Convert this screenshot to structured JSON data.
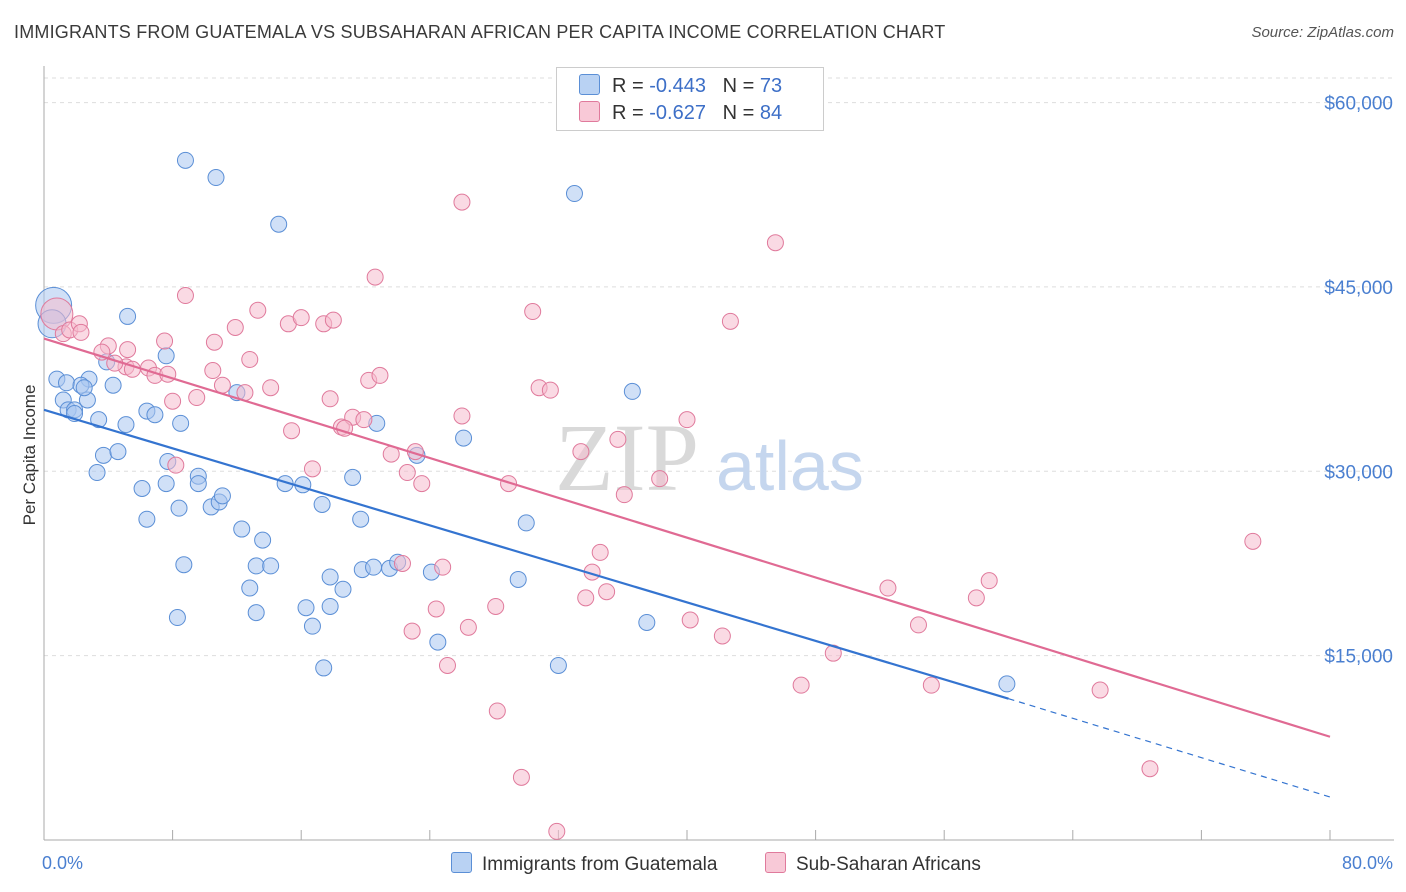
{
  "title": "IMMIGRANTS FROM GUATEMALA VS SUBSAHARAN AFRICAN PER CAPITA INCOME CORRELATION CHART",
  "source": "Source: ZipAtlas.com",
  "watermark": {
    "zip": "ZIP",
    "atlas": "atlas"
  },
  "legend": {
    "r_label": "R =",
    "n_label": "N =",
    "series": [
      {
        "r": "-0.443",
        "n": "73",
        "color": "#a9c7f0",
        "edge": "#5b8fd6"
      },
      {
        "r": "-0.627",
        "n": "84",
        "color": "#f6bccd",
        "edge": "#e07a9c"
      }
    ]
  },
  "bottom_legend": [
    "Immigrants from Guatemala",
    "Sub-Saharan Africans"
  ],
  "chart_data": {
    "type": "scatter",
    "ylabel": "Per Capita Income",
    "xlim": [
      0,
      80
    ],
    "ylim": [
      0,
      62000
    ],
    "grid": true,
    "y_ticks": [
      {
        "value": 60000,
        "label": "$60,000"
      },
      {
        "value": 45000,
        "label": "$45,000"
      },
      {
        "value": 30000,
        "label": "$30,000"
      },
      {
        "value": 15000,
        "label": "$15,000"
      }
    ],
    "x_tick_labels": [
      {
        "value": 0,
        "label": "0.0%"
      },
      {
        "value": 80,
        "label": "80.0%"
      }
    ],
    "series": [
      {
        "name": "Immigrants from Guatemala",
        "color": "#a9c7f0",
        "edge": "#5b8fd6",
        "line_color": "#3474d0",
        "trend": {
          "x0": 0,
          "y0": 35000,
          "x1": 60,
          "y1": 11500,
          "dash_to_x": 80,
          "dash_to_y": 3500
        },
        "points": [
          [
            0.6,
            43500
          ],
          [
            0.5,
            42000
          ],
          [
            0.8,
            37500
          ],
          [
            1.4,
            37200
          ],
          [
            1.2,
            35800
          ],
          [
            1.5,
            35000
          ],
          [
            1.9,
            35000
          ],
          [
            2.8,
            37500
          ],
          [
            2.3,
            37000
          ],
          [
            2.7,
            35800
          ],
          [
            3.9,
            38900
          ],
          [
            4.3,
            37000
          ],
          [
            5.2,
            42600
          ],
          [
            3.4,
            34200
          ],
          [
            3.3,
            29900
          ],
          [
            3.7,
            31300
          ],
          [
            4.6,
            31600
          ],
          [
            5.1,
            33800
          ],
          [
            6.4,
            34900
          ],
          [
            6.9,
            34600
          ],
          [
            7.6,
            39400
          ],
          [
            8.5,
            33900
          ],
          [
            6.1,
            28600
          ],
          [
            7.6,
            29000
          ],
          [
            7.7,
            30800
          ],
          [
            8.4,
            27000
          ],
          [
            9.6,
            29600
          ],
          [
            10.4,
            27100
          ],
          [
            10.9,
            27500
          ],
          [
            11.1,
            28000
          ],
          [
            9.6,
            29000
          ],
          [
            6.4,
            26100
          ],
          [
            12.3,
            25300
          ],
          [
            12.0,
            36400
          ],
          [
            13.2,
            22300
          ],
          [
            13.6,
            24400
          ],
          [
            14.1,
            22300
          ],
          [
            12.8,
            20500
          ],
          [
            13.2,
            18500
          ],
          [
            15.0,
            29000
          ],
          [
            16.1,
            28900
          ],
          [
            16.3,
            18900
          ],
          [
            17.3,
            27300
          ],
          [
            17.8,
            19000
          ],
          [
            17.8,
            21400
          ],
          [
            18.6,
            20400
          ],
          [
            16.7,
            17400
          ],
          [
            8.7,
            22400
          ],
          [
            8.3,
            18100
          ],
          [
            19.2,
            29500
          ],
          [
            19.7,
            26100
          ],
          [
            19.8,
            22000
          ],
          [
            20.5,
            22200
          ],
          [
            20.7,
            33900
          ],
          [
            21.5,
            22100
          ],
          [
            22.0,
            22600
          ],
          [
            23.2,
            31300
          ],
          [
            24.1,
            21800
          ],
          [
            24.5,
            16100
          ],
          [
            26.1,
            32700
          ],
          [
            29.5,
            21200
          ],
          [
            30.0,
            25800
          ],
          [
            32.0,
            14200
          ],
          [
            33.0,
            52600
          ],
          [
            36.6,
            36500
          ],
          [
            37.5,
            17700
          ],
          [
            17.4,
            14000
          ],
          [
            14.6,
            50100
          ],
          [
            8.8,
            55300
          ],
          [
            10.7,
            53900
          ],
          [
            59.9,
            12700
          ],
          [
            2.5,
            36800
          ],
          [
            1.9,
            34700
          ]
        ],
        "sizes": {
          "0": 18,
          "1": 14
        }
      },
      {
        "name": "Sub-Saharan Africans",
        "color": "#f6bccd",
        "edge": "#e07a9c",
        "line_color": "#e06a93",
        "trend": {
          "x0": 0,
          "y0": 40800,
          "x1": 80,
          "y1": 8400
        },
        "points": [
          [
            0.8,
            42800
          ],
          [
            1.2,
            41200
          ],
          [
            1.6,
            41500
          ],
          [
            2.2,
            42000
          ],
          [
            2.3,
            41300
          ],
          [
            4.0,
            40200
          ],
          [
            5.2,
            39900
          ],
          [
            3.6,
            39700
          ],
          [
            5.1,
            38500
          ],
          [
            4.4,
            38800
          ],
          [
            5.5,
            38300
          ],
          [
            6.5,
            38400
          ],
          [
            6.9,
            37800
          ],
          [
            7.5,
            40600
          ],
          [
            7.7,
            37900
          ],
          [
            8.0,
            35700
          ],
          [
            8.8,
            44300
          ],
          [
            9.5,
            36000
          ],
          [
            10.6,
            40500
          ],
          [
            10.5,
            38200
          ],
          [
            11.1,
            37000
          ],
          [
            11.9,
            41700
          ],
          [
            12.5,
            36400
          ],
          [
            12.8,
            39100
          ],
          [
            13.3,
            43100
          ],
          [
            14.1,
            36800
          ],
          [
            15.2,
            42000
          ],
          [
            15.4,
            33300
          ],
          [
            16.0,
            42500
          ],
          [
            16.7,
            30200
          ],
          [
            17.4,
            42000
          ],
          [
            17.8,
            35900
          ],
          [
            18.0,
            42300
          ],
          [
            18.5,
            33600
          ],
          [
            19.2,
            34400
          ],
          [
            19.9,
            34200
          ],
          [
            20.2,
            37400
          ],
          [
            20.6,
            45800
          ],
          [
            20.9,
            37800
          ],
          [
            21.6,
            31400
          ],
          [
            22.3,
            22500
          ],
          [
            22.6,
            29900
          ],
          [
            22.9,
            17000
          ],
          [
            23.1,
            31600
          ],
          [
            23.5,
            29000
          ],
          [
            24.4,
            18800
          ],
          [
            24.8,
            22200
          ],
          [
            25.1,
            14200
          ],
          [
            26.0,
            34500
          ],
          [
            26.0,
            51900
          ],
          [
            26.4,
            17300
          ],
          [
            28.1,
            19000
          ],
          [
            28.2,
            10500
          ],
          [
            28.9,
            29000
          ],
          [
            29.7,
            5100
          ],
          [
            30.4,
            43000
          ],
          [
            30.8,
            36800
          ],
          [
            31.5,
            36600
          ],
          [
            31.9,
            700
          ],
          [
            33.4,
            31600
          ],
          [
            33.7,
            19700
          ],
          [
            34.1,
            21800
          ],
          [
            34.6,
            23400
          ],
          [
            35.0,
            20200
          ],
          [
            35.7,
            32600
          ],
          [
            36.1,
            28100
          ],
          [
            38.3,
            29400
          ],
          [
            40.2,
            17900
          ],
          [
            42.2,
            16600
          ],
          [
            42.7,
            42200
          ],
          [
            45.5,
            48600
          ],
          [
            47.1,
            12600
          ],
          [
            49.1,
            15200
          ],
          [
            52.5,
            20500
          ],
          [
            54.4,
            17500
          ],
          [
            55.2,
            12600
          ],
          [
            58.0,
            19700
          ],
          [
            58.8,
            21100
          ],
          [
            65.7,
            12200
          ],
          [
            68.8,
            5800
          ],
          [
            75.2,
            24300
          ],
          [
            8.2,
            30500
          ],
          [
            18.7,
            33500
          ],
          [
            40.0,
            34200
          ]
        ],
        "sizes": {
          "0": 16
        }
      }
    ]
  }
}
